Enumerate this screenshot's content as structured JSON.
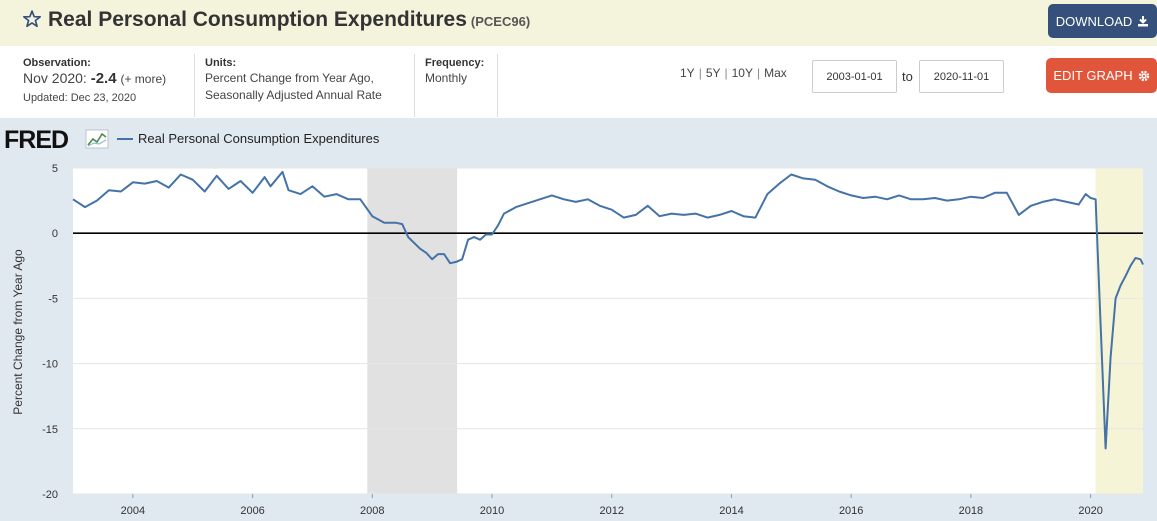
{
  "header": {
    "title": "Real Personal Consumption Expenditures",
    "series_code": "(PCEC96)",
    "download_label": "DOWNLOAD"
  },
  "meta": {
    "observation_label": "Observation:",
    "observation_date": "Nov 2020:",
    "observation_value": "-2.4",
    "observation_more": "(+ more)",
    "updated": "Updated: Dec 23, 2020",
    "units_label": "Units:",
    "units_line1": "Percent Change from Year Ago,",
    "units_line2": "Seasonally Adjusted Annual Rate",
    "frequency_label": "Frequency:",
    "frequency_value": "Monthly"
  },
  "controls": {
    "ranges": [
      "1Y",
      "5Y",
      "10Y",
      "Max"
    ],
    "start_date": "2003-01-01",
    "to_label": "to",
    "end_date": "2020-11-01",
    "edit_label": "EDIT GRAPH"
  },
  "colors": {
    "series": "#4572a7",
    "recession": "#e1e1e1",
    "highlight": "#f6f4d6",
    "zero_line": "#000000"
  },
  "chart_data": {
    "type": "line",
    "logo": "FRED",
    "legend": "Real Personal Consumption Expenditures",
    "ylabel": "Percent Change from Year Ago",
    "xlabel": "",
    "x_start": "2003-01",
    "x_end": "2020-11",
    "xlim": [
      2003.0,
      2020.875
    ],
    "ylim": [
      -20,
      5
    ],
    "yticks": [
      5,
      0,
      -5,
      -10,
      -15,
      -20
    ],
    "xticks": [
      2004,
      2006,
      2008,
      2010,
      2012,
      2014,
      2016,
      2018,
      2020
    ],
    "recessions": [
      [
        2007.917,
        2009.417
      ]
    ],
    "highlight": [
      2020.083,
      2020.875
    ],
    "keypoints": [
      [
        2003.0,
        2.6
      ],
      [
        2003.2,
        2.0
      ],
      [
        2003.4,
        2.5
      ],
      [
        2003.6,
        3.3
      ],
      [
        2003.8,
        3.2
      ],
      [
        2004.0,
        3.9
      ],
      [
        2004.2,
        3.8
      ],
      [
        2004.4,
        4.0
      ],
      [
        2004.6,
        3.5
      ],
      [
        2004.8,
        4.5
      ],
      [
        2005.0,
        4.1
      ],
      [
        2005.2,
        3.2
      ],
      [
        2005.4,
        4.4
      ],
      [
        2005.6,
        3.4
      ],
      [
        2005.8,
        4.0
      ],
      [
        2006.0,
        3.1
      ],
      [
        2006.2,
        4.3
      ],
      [
        2006.3,
        3.6
      ],
      [
        2006.5,
        4.7
      ],
      [
        2006.6,
        3.3
      ],
      [
        2006.8,
        3.0
      ],
      [
        2007.0,
        3.6
      ],
      [
        2007.2,
        2.8
      ],
      [
        2007.4,
        3.0
      ],
      [
        2007.6,
        2.6
      ],
      [
        2007.8,
        2.6
      ],
      [
        2008.0,
        1.3
      ],
      [
        2008.2,
        0.8
      ],
      [
        2008.4,
        0.8
      ],
      [
        2008.5,
        0.7
      ],
      [
        2008.6,
        -0.3
      ],
      [
        2008.8,
        -1.2
      ],
      [
        2008.9,
        -1.5
      ],
      [
        2009.0,
        -2.0
      ],
      [
        2009.1,
        -1.6
      ],
      [
        2009.2,
        -1.6
      ],
      [
        2009.3,
        -2.3
      ],
      [
        2009.4,
        -2.2
      ],
      [
        2009.5,
        -2.0
      ],
      [
        2009.6,
        -0.5
      ],
      [
        2009.7,
        -0.3
      ],
      [
        2009.8,
        -0.5
      ],
      [
        2009.9,
        -0.1
      ],
      [
        2010.0,
        -0.1
      ],
      [
        2010.1,
        0.6
      ],
      [
        2010.2,
        1.5
      ],
      [
        2010.4,
        2.0
      ],
      [
        2010.6,
        2.3
      ],
      [
        2010.8,
        2.6
      ],
      [
        2011.0,
        2.9
      ],
      [
        2011.2,
        2.6
      ],
      [
        2011.4,
        2.4
      ],
      [
        2011.6,
        2.6
      ],
      [
        2011.8,
        2.1
      ],
      [
        2012.0,
        1.8
      ],
      [
        2012.2,
        1.2
      ],
      [
        2012.4,
        1.4
      ],
      [
        2012.6,
        2.1
      ],
      [
        2012.8,
        1.3
      ],
      [
        2013.0,
        1.5
      ],
      [
        2013.2,
        1.4
      ],
      [
        2013.4,
        1.5
      ],
      [
        2013.6,
        1.2
      ],
      [
        2013.8,
        1.4
      ],
      [
        2014.0,
        1.7
      ],
      [
        2014.2,
        1.3
      ],
      [
        2014.4,
        1.2
      ],
      [
        2014.6,
        3.0
      ],
      [
        2014.8,
        3.8
      ],
      [
        2015.0,
        4.5
      ],
      [
        2015.2,
        4.2
      ],
      [
        2015.4,
        4.1
      ],
      [
        2015.6,
        3.6
      ],
      [
        2015.8,
        3.2
      ],
      [
        2016.0,
        2.9
      ],
      [
        2016.2,
        2.7
      ],
      [
        2016.4,
        2.8
      ],
      [
        2016.6,
        2.6
      ],
      [
        2016.8,
        2.9
      ],
      [
        2017.0,
        2.6
      ],
      [
        2017.2,
        2.6
      ],
      [
        2017.4,
        2.7
      ],
      [
        2017.6,
        2.5
      ],
      [
        2017.8,
        2.6
      ],
      [
        2018.0,
        2.8
      ],
      [
        2018.2,
        2.7
      ],
      [
        2018.4,
        3.1
      ],
      [
        2018.6,
        3.1
      ],
      [
        2018.8,
        1.4
      ],
      [
        2019.0,
        2.1
      ],
      [
        2019.2,
        2.4
      ],
      [
        2019.4,
        2.6
      ],
      [
        2019.6,
        2.4
      ],
      [
        2019.8,
        2.2
      ],
      [
        2019.917,
        3.0
      ],
      [
        2020.0,
        2.7
      ],
      [
        2020.083,
        2.6
      ],
      [
        2020.167,
        -7.0
      ],
      [
        2020.25,
        -16.5
      ],
      [
        2020.333,
        -9.5
      ],
      [
        2020.417,
        -5.0
      ],
      [
        2020.5,
        -4.0
      ],
      [
        2020.583,
        -3.3
      ],
      [
        2020.667,
        -2.5
      ],
      [
        2020.75,
        -1.9
      ],
      [
        2020.833,
        -2.0
      ],
      [
        2020.875,
        -2.4
      ]
    ]
  }
}
